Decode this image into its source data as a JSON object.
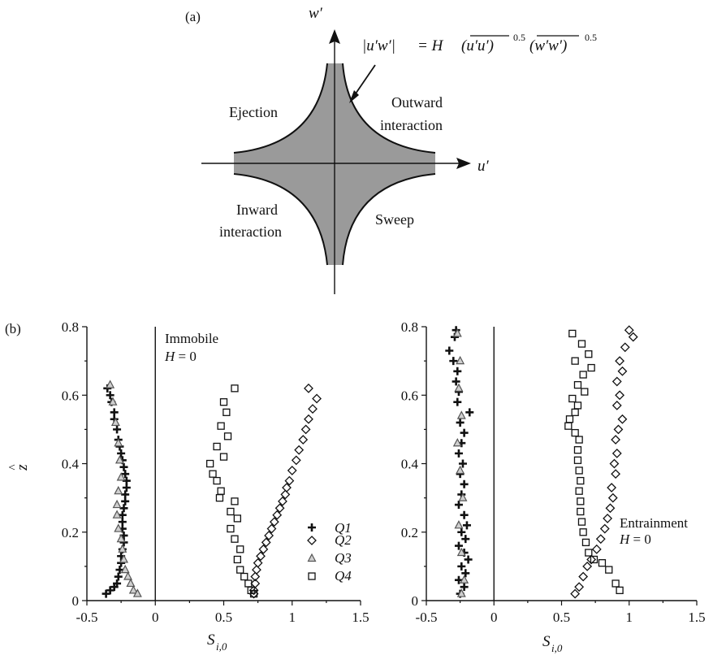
{
  "panel_a": {
    "label": "(a)",
    "axis_w": "w′",
    "axis_u": "u′",
    "quadrants": {
      "q2_label": "Ejection",
      "q1_line1": "Outward",
      "q1_line2": "interaction",
      "q3_line1": "Inward",
      "q3_line2": "interaction",
      "q4_label": "Sweep"
    },
    "equation": {
      "lhs": "|u′w′|",
      "eq": "= H",
      "term1": "(u′u′)",
      "term2": "(w′w′)",
      "exp": "0.5"
    },
    "colors": {
      "hole_fill": "#9a9a9a",
      "ink": "#111111"
    }
  },
  "panel_b": {
    "label": "(b)",
    "ylabel": "z^",
    "xlabel_main": "S",
    "xlabel_sub": "i,0",
    "left_annotation_1": "Immobile",
    "left_annotation_2": "H = 0",
    "right_annotation_1": "Entrainment",
    "right_annotation_2": "H = 0",
    "legend": [
      {
        "marker": "plus",
        "label": "Q1"
      },
      {
        "marker": "diamond",
        "label": "Q2"
      },
      {
        "marker": "triangle",
        "label": "Q3"
      },
      {
        "marker": "square",
        "label": "Q4"
      }
    ]
  },
  "chart_data": [
    {
      "type": "scatter",
      "title": "",
      "xlabel": "S_i,0",
      "ylabel": "z^",
      "xlim": [
        -0.5,
        1.5
      ],
      "ylim": [
        0,
        0.8
      ],
      "xticks": [
        "-0.5",
        "0",
        "0.5",
        "1",
        "1.5"
      ],
      "yticks": [
        "0",
        "0.2",
        "0.4",
        "0.6",
        "0.8"
      ],
      "annotation": [
        "Immobile",
        "H = 0"
      ],
      "series": [
        {
          "name": "Q1",
          "marker": "plus",
          "points": [
            [
              -0.35,
              0.62
            ],
            [
              -0.33,
              0.6
            ],
            [
              -0.32,
              0.58
            ],
            [
              -0.3,
              0.55
            ],
            [
              -0.3,
              0.53
            ],
            [
              -0.28,
              0.5
            ],
            [
              -0.27,
              0.47
            ],
            [
              -0.26,
              0.45
            ],
            [
              -0.25,
              0.43
            ],
            [
              -0.24,
              0.41
            ],
            [
              -0.23,
              0.39
            ],
            [
              -0.22,
              0.37
            ],
            [
              -0.21,
              0.35
            ],
            [
              -0.21,
              0.33
            ],
            [
              -0.22,
              0.31
            ],
            [
              -0.22,
              0.29
            ],
            [
              -0.23,
              0.27
            ],
            [
              -0.24,
              0.25
            ],
            [
              -0.24,
              0.23
            ],
            [
              -0.24,
              0.21
            ],
            [
              -0.23,
              0.19
            ],
            [
              -0.23,
              0.17
            ],
            [
              -0.24,
              0.15
            ],
            [
              -0.25,
              0.13
            ],
            [
              -0.25,
              0.11
            ],
            [
              -0.26,
              0.09
            ],
            [
              -0.27,
              0.07
            ],
            [
              -0.28,
              0.05
            ],
            [
              -0.3,
              0.04
            ],
            [
              -0.33,
              0.03
            ],
            [
              -0.36,
              0.02
            ]
          ]
        },
        {
          "name": "Q2",
          "marker": "diamond",
          "points": [
            [
              1.12,
              0.62
            ],
            [
              1.18,
              0.59
            ],
            [
              1.15,
              0.56
            ],
            [
              1.12,
              0.53
            ],
            [
              1.1,
              0.5
            ],
            [
              1.08,
              0.47
            ],
            [
              1.05,
              0.44
            ],
            [
              1.03,
              0.41
            ],
            [
              1.0,
              0.38
            ],
            [
              0.98,
              0.35
            ],
            [
              0.96,
              0.33
            ],
            [
              0.95,
              0.31
            ],
            [
              0.93,
              0.29
            ],
            [
              0.91,
              0.27
            ],
            [
              0.89,
              0.25
            ],
            [
              0.87,
              0.23
            ],
            [
              0.85,
              0.21
            ],
            [
              0.83,
              0.19
            ],
            [
              0.81,
              0.17
            ],
            [
              0.79,
              0.15
            ],
            [
              0.77,
              0.13
            ],
            [
              0.75,
              0.11
            ],
            [
              0.74,
              0.09
            ],
            [
              0.73,
              0.07
            ],
            [
              0.73,
              0.05
            ],
            [
              0.72,
              0.03
            ],
            [
              0.72,
              0.02
            ]
          ]
        },
        {
          "name": "Q3",
          "marker": "triangle",
          "points": [
            [
              -0.33,
              0.63
            ],
            [
              -0.31,
              0.58
            ],
            [
              -0.29,
              0.52
            ],
            [
              -0.27,
              0.46
            ],
            [
              -0.26,
              0.41
            ],
            [
              -0.25,
              0.36
            ],
            [
              -0.27,
              0.32
            ],
            [
              -0.28,
              0.28
            ],
            [
              -0.28,
              0.25
            ],
            [
              -0.27,
              0.21
            ],
            [
              -0.25,
              0.18
            ],
            [
              -0.24,
              0.15
            ],
            [
              -0.23,
              0.12
            ],
            [
              -0.22,
              0.09
            ],
            [
              -0.2,
              0.07
            ],
            [
              -0.18,
              0.05
            ],
            [
              -0.16,
              0.03
            ],
            [
              -0.13,
              0.02
            ]
          ]
        },
        {
          "name": "Q4",
          "marker": "square",
          "points": [
            [
              0.58,
              0.62
            ],
            [
              0.5,
              0.58
            ],
            [
              0.52,
              0.55
            ],
            [
              0.48,
              0.51
            ],
            [
              0.53,
              0.48
            ],
            [
              0.45,
              0.45
            ],
            [
              0.5,
              0.42
            ],
            [
              0.4,
              0.4
            ],
            [
              0.42,
              0.37
            ],
            [
              0.45,
              0.35
            ],
            [
              0.48,
              0.32
            ],
            [
              0.47,
              0.3
            ],
            [
              0.58,
              0.29
            ],
            [
              0.55,
              0.26
            ],
            [
              0.6,
              0.24
            ],
            [
              0.55,
              0.21
            ],
            [
              0.58,
              0.18
            ],
            [
              0.62,
              0.15
            ],
            [
              0.6,
              0.12
            ],
            [
              0.62,
              0.09
            ],
            [
              0.65,
              0.07
            ],
            [
              0.68,
              0.05
            ],
            [
              0.7,
              0.03
            ],
            [
              0.72,
              0.02
            ]
          ]
        }
      ]
    },
    {
      "type": "scatter",
      "title": "",
      "xlabel": "S_i,0",
      "ylabel": "",
      "xlim": [
        -0.5,
        1.5
      ],
      "ylim": [
        0,
        0.8
      ],
      "xticks": [
        "-0.5",
        "0",
        "0.5",
        "1",
        "1.5"
      ],
      "yticks": [
        "0",
        "0.2",
        "0.4",
        "0.6",
        "0.8"
      ],
      "annotation": [
        "Entrainment",
        "H = 0"
      ],
      "series": [
        {
          "name": "Q1",
          "marker": "plus",
          "points": [
            [
              -0.28,
              0.79
            ],
            [
              -0.29,
              0.77
            ],
            [
              -0.33,
              0.73
            ],
            [
              -0.3,
              0.7
            ],
            [
              -0.27,
              0.67
            ],
            [
              -0.28,
              0.64
            ],
            [
              -0.26,
              0.61
            ],
            [
              -0.27,
              0.58
            ],
            [
              -0.18,
              0.55
            ],
            [
              -0.25,
              0.52
            ],
            [
              -0.22,
              0.49
            ],
            [
              -0.24,
              0.46
            ],
            [
              -0.26,
              0.43
            ],
            [
              -0.23,
              0.4
            ],
            [
              -0.25,
              0.37
            ],
            [
              -0.22,
              0.34
            ],
            [
              -0.24,
              0.31
            ],
            [
              -0.26,
              0.28
            ],
            [
              -0.22,
              0.25
            ],
            [
              -0.2,
              0.22
            ],
            [
              -0.24,
              0.2
            ],
            [
              -0.21,
              0.18
            ],
            [
              -0.26,
              0.16
            ],
            [
              -0.22,
              0.14
            ],
            [
              -0.19,
              0.12
            ],
            [
              -0.24,
              0.1
            ],
            [
              -0.21,
              0.08
            ],
            [
              -0.26,
              0.06
            ],
            [
              -0.22,
              0.04
            ],
            [
              -0.25,
              0.02
            ]
          ]
        },
        {
          "name": "Q2",
          "marker": "diamond",
          "points": [
            [
              1.0,
              0.79
            ],
            [
              1.03,
              0.77
            ],
            [
              0.97,
              0.74
            ],
            [
              0.93,
              0.7
            ],
            [
              0.95,
              0.67
            ],
            [
              0.91,
              0.64
            ],
            [
              0.93,
              0.6
            ],
            [
              0.91,
              0.57
            ],
            [
              0.95,
              0.53
            ],
            [
              0.92,
              0.5
            ],
            [
              0.9,
              0.47
            ],
            [
              0.91,
              0.43
            ],
            [
              0.89,
              0.4
            ],
            [
              0.9,
              0.37
            ],
            [
              0.87,
              0.33
            ],
            [
              0.88,
              0.3
            ],
            [
              0.86,
              0.27
            ],
            [
              0.84,
              0.24
            ],
            [
              0.82,
              0.21
            ],
            [
              0.79,
              0.18
            ],
            [
              0.76,
              0.15
            ],
            [
              0.72,
              0.12
            ],
            [
              0.69,
              0.1
            ],
            [
              0.66,
              0.07
            ],
            [
              0.63,
              0.04
            ],
            [
              0.6,
              0.02
            ]
          ]
        },
        {
          "name": "Q3",
          "marker": "triangle",
          "points": [
            [
              -0.27,
              0.78
            ],
            [
              -0.25,
              0.7
            ],
            [
              -0.26,
              0.62
            ],
            [
              -0.24,
              0.54
            ],
            [
              -0.27,
              0.46
            ],
            [
              -0.25,
              0.38
            ],
            [
              -0.23,
              0.3
            ],
            [
              -0.26,
              0.22
            ],
            [
              -0.24,
              0.14
            ],
            [
              -0.22,
              0.06
            ],
            [
              -0.24,
              0.02
            ]
          ]
        },
        {
          "name": "Q4",
          "marker": "square",
          "points": [
            [
              0.58,
              0.78
            ],
            [
              0.65,
              0.75
            ],
            [
              0.7,
              0.72
            ],
            [
              0.6,
              0.7
            ],
            [
              0.72,
              0.68
            ],
            [
              0.66,
              0.66
            ],
            [
              0.62,
              0.63
            ],
            [
              0.67,
              0.61
            ],
            [
              0.58,
              0.59
            ],
            [
              0.62,
              0.57
            ],
            [
              0.6,
              0.55
            ],
            [
              0.56,
              0.53
            ],
            [
              0.55,
              0.51
            ],
            [
              0.6,
              0.49
            ],
            [
              0.63,
              0.47
            ],
            [
              0.62,
              0.44
            ],
            [
              0.62,
              0.41
            ],
            [
              0.63,
              0.38
            ],
            [
              0.64,
              0.35
            ],
            [
              0.63,
              0.32
            ],
            [
              0.64,
              0.29
            ],
            [
              0.64,
              0.26
            ],
            [
              0.65,
              0.23
            ],
            [
              0.66,
              0.2
            ],
            [
              0.68,
              0.17
            ],
            [
              0.7,
              0.14
            ],
            [
              0.74,
              0.12
            ],
            [
              0.8,
              0.11
            ],
            [
              0.85,
              0.09
            ],
            [
              0.9,
              0.05
            ],
            [
              0.93,
              0.03
            ]
          ]
        }
      ]
    }
  ]
}
